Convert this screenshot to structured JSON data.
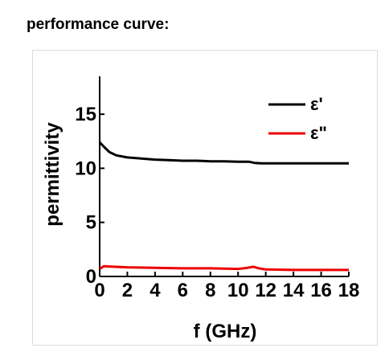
{
  "page": {
    "title": "performance curve:"
  },
  "chart_data": {
    "type": "line",
    "title": "",
    "xlabel": "f (GHz)",
    "ylabel": "permittivity",
    "xlim": [
      0,
      18
    ],
    "ylim": [
      0,
      18.5
    ],
    "x_ticks": [
      0,
      2,
      4,
      6,
      8,
      10,
      12,
      14,
      16,
      18
    ],
    "y_ticks": [
      0,
      5,
      10,
      15
    ],
    "x_tick_labels": [
      "0",
      "2",
      "4",
      "6",
      "8",
      "10",
      "12",
      "14",
      "16",
      "18"
    ],
    "y_tick_labels": [
      "0",
      "5",
      "10",
      "15"
    ],
    "grid": false,
    "legend": "top-right",
    "series": [
      {
        "name": "ε'",
        "color": "#000000",
        "x": [
          0,
          0.3,
          0.7,
          1.2,
          2,
          3,
          4,
          5,
          6,
          7,
          8,
          9,
          10,
          10.8,
          11.2,
          11.7,
          12.5,
          14,
          16,
          18
        ],
        "y": [
          12.4,
          12.0,
          11.5,
          11.2,
          11.0,
          10.9,
          10.8,
          10.75,
          10.7,
          10.7,
          10.65,
          10.65,
          10.6,
          10.6,
          10.5,
          10.45,
          10.45,
          10.45,
          10.45,
          10.45
        ]
      },
      {
        "name": "ε\"",
        "color": "#ee0000",
        "x": [
          0,
          0.3,
          1,
          2,
          4,
          6,
          8,
          10,
          10.7,
          11.1,
          11.5,
          12,
          14,
          16,
          18
        ],
        "y": [
          0.7,
          0.95,
          0.9,
          0.85,
          0.8,
          0.75,
          0.75,
          0.7,
          0.8,
          0.9,
          0.75,
          0.65,
          0.6,
          0.6,
          0.6
        ]
      }
    ]
  }
}
